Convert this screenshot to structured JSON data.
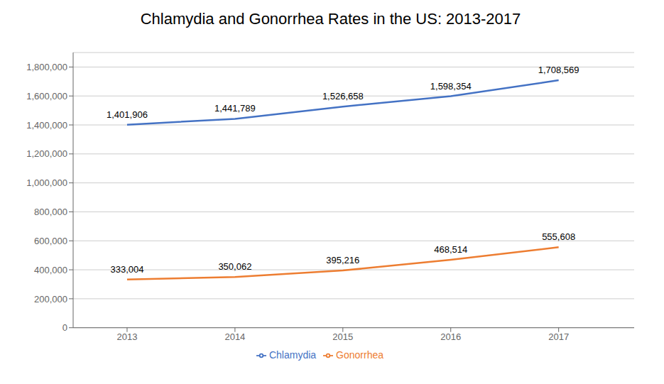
{
  "chart_data": {
    "type": "line",
    "title": "Chlamydia and Gonorrhea Rates in the US: 2013-2017",
    "x": [
      2013,
      2014,
      2015,
      2016,
      2017
    ],
    "xlim": [
      2012.5,
      2017.7
    ],
    "xticks": [
      2013,
      2014,
      2015,
      2016,
      2017
    ],
    "ylim": [
      0,
      1900000
    ],
    "yticks": [
      0,
      {
        "value": 200000,
        "label": "200,000"
      },
      {
        "value": 400000,
        "label": "400,000"
      },
      {
        "value": 600000,
        "label": "600,000"
      },
      {
        "value": 800000,
        "label": "800,000"
      },
      {
        "value": 1000000,
        "label": "1,000,000"
      },
      {
        "value": 1200000,
        "label": "1,200,000"
      },
      {
        "value": 1400000,
        "label": "1,400,000"
      },
      {
        "value": 1600000,
        "label": "1,600,000"
      },
      {
        "value": 1800000,
        "label": "1,800,000"
      }
    ],
    "grid": true,
    "legend": "bottom",
    "data_labels": true,
    "series": [
      {
        "name": "Chlamydia",
        "color": "#4472C4",
        "values": [
          1401906,
          1441789,
          1526658,
          1598354,
          1708569
        ],
        "value_labels": [
          "1,401,906",
          "1,441,789",
          "1,526,658",
          "1,598,354",
          "1,708,569"
        ]
      },
      {
        "name": "Gonorrhea",
        "color": "#ED7D31",
        "values": [
          333004,
          350062,
          395216,
          468514,
          555608
        ],
        "value_labels": [
          "333,004",
          "350,062",
          "395,216",
          "468,514",
          "555,608"
        ]
      }
    ]
  }
}
